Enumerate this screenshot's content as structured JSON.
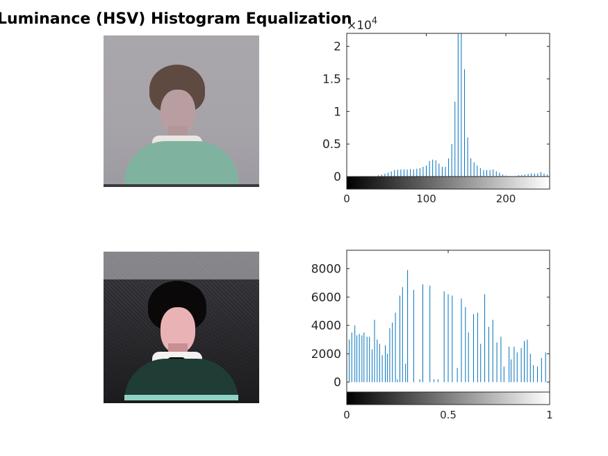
{
  "figure": {
    "title": "Luminance (HSV) Histogram Equalization"
  },
  "colors": {
    "stem": "#0072bd",
    "axes": "#262626",
    "text": "#262626"
  },
  "chart_data": [
    {
      "type": "bar",
      "name": "histogram-original",
      "exponent_label": "×10",
      "exponent_power": "4",
      "x": [
        40,
        44,
        48,
        52,
        56,
        60,
        64,
        68,
        72,
        76,
        80,
        84,
        88,
        92,
        96,
        100,
        104,
        108,
        112,
        116,
        120,
        124,
        128,
        132,
        136,
        140,
        144,
        148,
        152,
        156,
        160,
        164,
        168,
        172,
        176,
        180,
        184,
        188,
        192,
        196,
        200,
        216,
        220,
        224,
        228,
        232,
        236,
        240,
        244,
        248,
        252,
        255
      ],
      "values": [
        200,
        300,
        450,
        600,
        800,
        1000,
        1050,
        1100,
        1100,
        1100,
        1150,
        1100,
        1200,
        1300,
        1500,
        1700,
        2400,
        2600,
        2500,
        2000,
        1500,
        1500,
        2800,
        5000,
        11500,
        23000,
        23000,
        16500,
        6000,
        2800,
        2200,
        1700,
        1300,
        1000,
        1000,
        1000,
        1100,
        800,
        600,
        300,
        150,
        200,
        250,
        300,
        400,
        500,
        450,
        500,
        700,
        450,
        300,
        1700
      ],
      "xticks": [
        "0",
        "100",
        "200"
      ],
      "xtick_values": [
        0,
        100,
        200
      ],
      "yticks": [
        "0",
        "0.5",
        "1",
        "1.5",
        "2"
      ],
      "ytick_values": [
        0,
        5000,
        10000,
        15000,
        20000
      ],
      "xlim": [
        0,
        255
      ],
      "ylim": [
        0,
        22000
      ]
    },
    {
      "type": "bar",
      "name": "histogram-equalized",
      "x": [
        0,
        0.012,
        0.025,
        0.04,
        0.05,
        0.062,
        0.075,
        0.085,
        0.1,
        0.112,
        0.125,
        0.137,
        0.15,
        0.162,
        0.175,
        0.19,
        0.2,
        0.212,
        0.225,
        0.24,
        0.25,
        0.262,
        0.275,
        0.29,
        0.3,
        0.33,
        0.36,
        0.375,
        0.41,
        0.43,
        0.45,
        0.48,
        0.5,
        0.52,
        0.545,
        0.565,
        0.585,
        0.6,
        0.625,
        0.645,
        0.66,
        0.68,
        0.7,
        0.72,
        0.74,
        0.76,
        0.775,
        0.8,
        0.81,
        0.825,
        0.84,
        0.86,
        0.875,
        0.89,
        0.905,
        0.92,
        0.94,
        0.96,
        0.98,
        1.0
      ],
      "values": [
        3100,
        3000,
        3500,
        4000,
        3300,
        3400,
        3300,
        3500,
        3200,
        3200,
        2300,
        4400,
        3000,
        2700,
        1900,
        2600,
        2000,
        3800,
        4200,
        4900,
        200,
        6100,
        6700,
        1300,
        7900,
        6500,
        200,
        6900,
        6800,
        200,
        200,
        6400,
        6200,
        6100,
        1000,
        5900,
        5300,
        3500,
        4800,
        4900,
        2700,
        6200,
        3900,
        4400,
        2800,
        3200,
        1100,
        2500,
        1600,
        2500,
        2100,
        2400,
        2900,
        3000,
        2000,
        1200,
        1100,
        1700,
        2100,
        1700
      ],
      "xticks": [
        "0",
        "0.5",
        "1"
      ],
      "xtick_values": [
        0,
        0.5,
        1
      ],
      "yticks": [
        "0",
        "2000",
        "4000",
        "6000",
        "8000"
      ],
      "ytick_values": [
        0,
        2000,
        4000,
        6000,
        8000
      ],
      "xlim": [
        0,
        1
      ],
      "ylim": [
        -700,
        9300
      ]
    }
  ]
}
